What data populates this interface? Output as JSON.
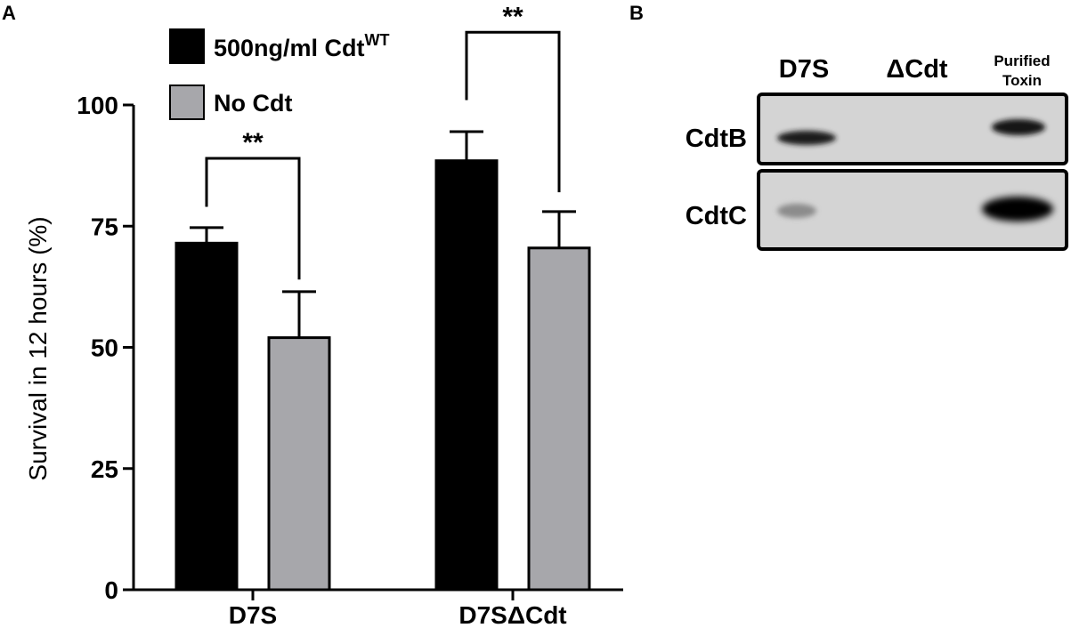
{
  "panel_labels": {
    "a": "A",
    "b": "B"
  },
  "chart_data": {
    "type": "bar",
    "ylabel": "Survival in 12 hours (%)",
    "xlabel": "",
    "ylim": [
      0,
      100
    ],
    "yticks": [
      0,
      25,
      50,
      75,
      100
    ],
    "categories": [
      "D7S",
      "D7SΔCdt"
    ],
    "series": [
      {
        "name": "500ng/ml Cdt",
        "name_sup": "WT",
        "color": "#000000",
        "values": [
          71.5,
          88.5
        ],
        "errors": [
          3.2,
          6.0
        ]
      },
      {
        "name": "No Cdt",
        "color": "#a7a7ab",
        "values": [
          52,
          70.5
        ],
        "errors": [
          9.5,
          7.5
        ]
      }
    ],
    "significance": [
      {
        "category_index": 0,
        "label": "**",
        "left_y": 89,
        "right_y": 89,
        "left_bottom": 79,
        "right_bottom": 64
      },
      {
        "category_index": 1,
        "label": "**",
        "left_y": 115,
        "right_y": 115,
        "left_bottom": 101,
        "right_bottom": 82
      }
    ],
    "legend_position": "top-left",
    "grid": false
  },
  "blot": {
    "columns": [
      "D7S",
      "ΔCdt",
      "Purified",
      "Toxin"
    ],
    "rows": [
      "CdtB",
      "CdtC"
    ]
  }
}
